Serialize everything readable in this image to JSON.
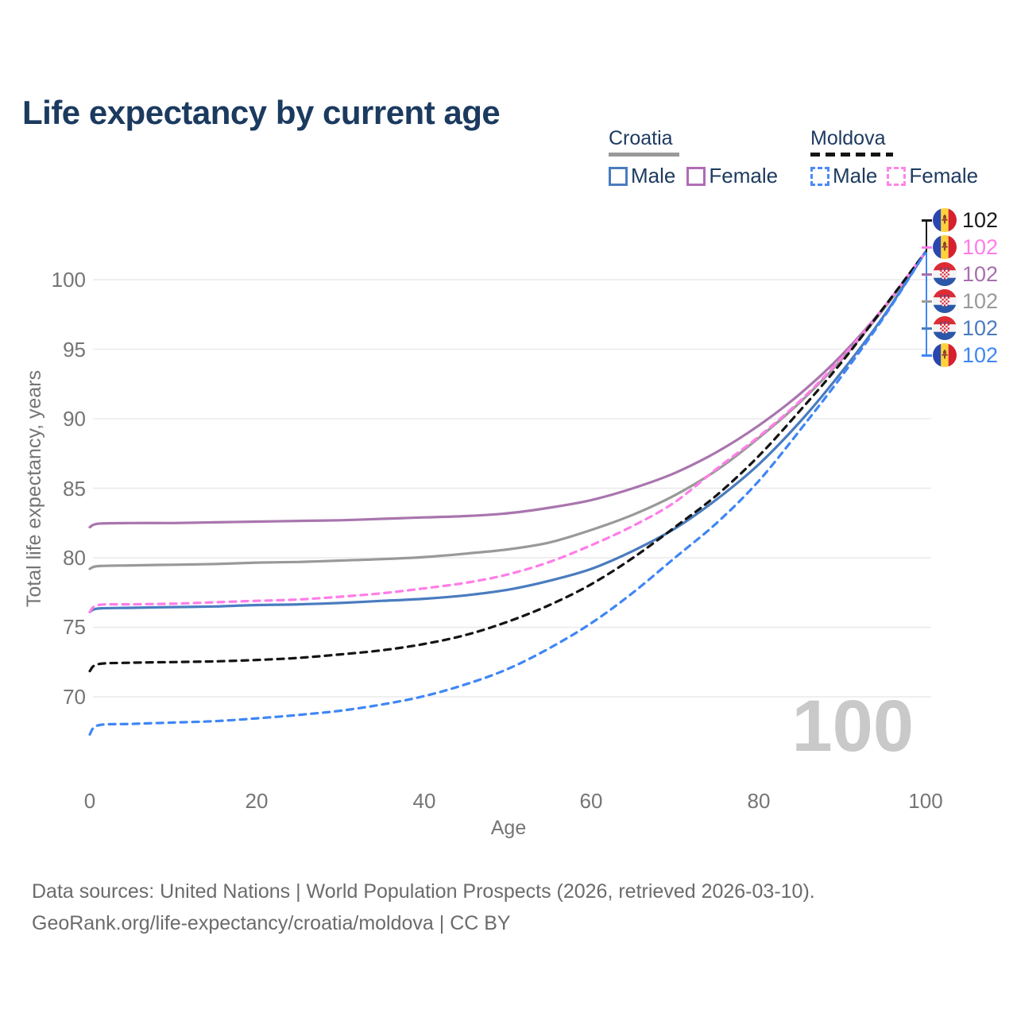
{
  "title": "Life expectancy by current age",
  "legend": {
    "croatia": {
      "label": "Croatia",
      "male": "Male",
      "female": "Female",
      "line_style": "solid",
      "country_line_color": "#9a9a9a"
    },
    "moldova": {
      "label": "Moldova",
      "male": "Male",
      "female": "Female",
      "line_style": "dashed",
      "country_line_color": "#141414"
    }
  },
  "y_axis": {
    "title": "Total life expectancy, years",
    "ticks": [
      "100",
      "95",
      "90",
      "85",
      "80",
      "75",
      "70"
    ]
  },
  "x_axis": {
    "title": "Age",
    "ticks": [
      "0",
      "20",
      "40",
      "60",
      "80",
      "100"
    ]
  },
  "watermark_current_age": "100",
  "end_labels": [
    {
      "flag": "moldova-flag-icon",
      "series": "Moldova both sexes",
      "value": "102",
      "color": "#1a1a1a"
    },
    {
      "flag": "moldova-flag-icon",
      "series": "Moldova female",
      "value": "102",
      "color": "#ff7de8"
    },
    {
      "flag": "croatia-flag-icon",
      "series": "Croatia female",
      "value": "102",
      "color": "#a76fad"
    },
    {
      "flag": "croatia-flag-icon",
      "series": "Croatia both sexes",
      "value": "102",
      "color": "#9a9a9a"
    },
    {
      "flag": "croatia-flag-icon",
      "series": "Croatia male",
      "value": "102",
      "color": "#4a7cbf"
    },
    {
      "flag": "moldova-flag-icon",
      "series": "Moldova male",
      "value": "102",
      "color": "#3f86f5"
    }
  ],
  "footer": {
    "line1": "Data sources: United Nations | World Population Prospects (2026, retrieved 2026-03-10).",
    "line2": "GeoRank.org/life-expectancy/croatia/moldova | CC BY"
  },
  "chart_data": {
    "type": "line",
    "title": "Life expectancy by current age",
    "xlabel": "Age",
    "ylabel": "Total life expectancy, years",
    "x_range": [
      0,
      100
    ],
    "y_gridlines": [
      100,
      95,
      90,
      85,
      80,
      75,
      70
    ],
    "x_ticks": [
      0,
      20,
      40,
      60,
      80,
      100
    ],
    "grid": true,
    "legend_position": "top-right",
    "ages": [
      0,
      1,
      5,
      10,
      15,
      20,
      25,
      30,
      35,
      40,
      45,
      50,
      55,
      60,
      65,
      70,
      75,
      80,
      85,
      90,
      95,
      100
    ],
    "series": [
      {
        "name": "Croatia Female",
        "country": "Croatia",
        "sex": "female",
        "color": "#a975ae",
        "dash": "solid",
        "values": [
          82.2,
          82.45,
          82.5,
          82.5,
          82.55,
          82.6,
          82.65,
          82.7,
          82.8,
          82.9,
          83.0,
          83.2,
          83.6,
          84.15,
          85.0,
          86.1,
          87.6,
          89.5,
          91.8,
          94.6,
          98.0,
          102
        ]
      },
      {
        "name": "Croatia Both sexes",
        "country": "Croatia",
        "sex": "both",
        "color": "#999999",
        "dash": "solid",
        "values": [
          79.2,
          79.4,
          79.45,
          79.5,
          79.55,
          79.65,
          79.7,
          79.8,
          79.9,
          80.05,
          80.3,
          80.6,
          81.1,
          82.0,
          83.1,
          84.5,
          86.3,
          88.6,
          91.2,
          94.3,
          97.9,
          102
        ]
      },
      {
        "name": "Croatia Male",
        "country": "Croatia",
        "sex": "male",
        "color": "#4a7cbf",
        "dash": "solid",
        "values": [
          76.1,
          76.35,
          76.4,
          76.45,
          76.5,
          76.6,
          76.65,
          76.75,
          76.9,
          77.05,
          77.3,
          77.7,
          78.35,
          79.2,
          80.5,
          82.1,
          84.2,
          86.7,
          89.8,
          93.4,
          97.4,
          102
        ]
      },
      {
        "name": "Moldova Female",
        "country": "Moldova",
        "sex": "female",
        "color": "#ff7de8",
        "dash": "dashed",
        "values": [
          76.1,
          76.6,
          76.65,
          76.7,
          76.8,
          76.9,
          77.0,
          77.2,
          77.45,
          77.8,
          78.2,
          78.8,
          79.7,
          80.9,
          82.3,
          84.0,
          86.4,
          88.7,
          91.3,
          94.4,
          98.0,
          102
        ]
      },
      {
        "name": "Moldova Both sexes",
        "country": "Moldova",
        "sex": "both",
        "color": "#141414",
        "dash": "dashed",
        "values": [
          71.85,
          72.35,
          72.45,
          72.5,
          72.55,
          72.65,
          72.8,
          73.05,
          73.35,
          73.8,
          74.45,
          75.4,
          76.6,
          78.1,
          80.0,
          82.2,
          84.5,
          87.3,
          90.6,
          94.1,
          98.0,
          102
        ]
      },
      {
        "name": "Moldova Male",
        "country": "Moldova",
        "sex": "male",
        "color": "#3f86f5",
        "dash": "dashed",
        "values": [
          67.3,
          67.95,
          68.05,
          68.15,
          68.25,
          68.45,
          68.7,
          69.0,
          69.45,
          70.05,
          70.9,
          72.0,
          73.5,
          75.3,
          77.5,
          80.0,
          82.5,
          85.5,
          89.2,
          93.1,
          97.3,
          102
        ]
      }
    ]
  }
}
